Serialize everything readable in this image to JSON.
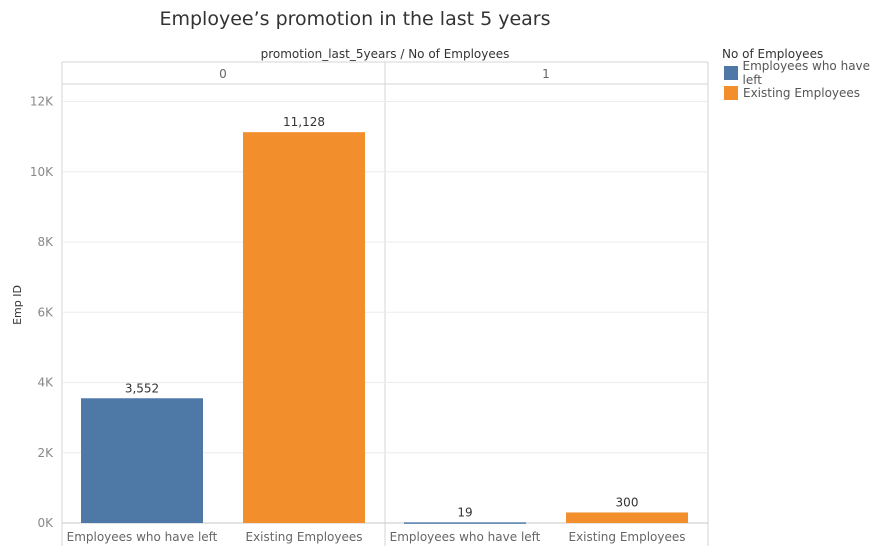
{
  "chart_data": {
    "type": "bar",
    "title": "Employee’s promotion in the last 5 years",
    "column_header": "promotion_last_5years  /  No of Employees",
    "ylabel": "Emp ID",
    "ylim": [
      0,
      12500
    ],
    "yticks": [
      0,
      2000,
      4000,
      6000,
      8000,
      10000,
      12000
    ],
    "ytick_labels": [
      "0K",
      "2K",
      "4K",
      "6K",
      "8K",
      "10K",
      "12K"
    ],
    "grid": true,
    "legend_position": "right",
    "legend": {
      "title": "No of Employees",
      "entries": [
        {
          "name": "Employees who have left",
          "color": "#4e79a7"
        },
        {
          "name": "Existing Employees",
          "color": "#f28e2b"
        }
      ]
    },
    "panels": [
      {
        "label": "0",
        "categories": [
          "Employees who have left",
          "Existing Employees"
        ],
        "values": [
          3552,
          11128
        ],
        "value_labels": [
          "3,552",
          "11,128"
        ],
        "colors": [
          "#4e79a7",
          "#f28e2b"
        ]
      },
      {
        "label": "1",
        "categories": [
          "Employees who have left",
          "Existing Employees"
        ],
        "values": [
          19,
          300
        ],
        "value_labels": [
          "19",
          "300"
        ],
        "colors": [
          "#4e79a7",
          "#f28e2b"
        ]
      }
    ]
  }
}
